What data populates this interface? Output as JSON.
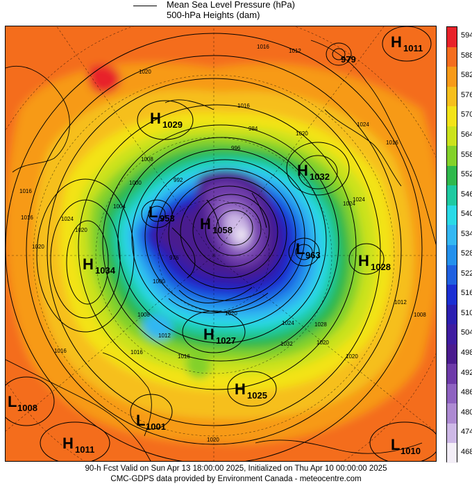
{
  "legend": {
    "line1": "Mean Sea Level Pressure (hPa)",
    "line2": "500-hPa Heights (dam)"
  },
  "colorbar": {
    "labels": [
      "594",
      "588",
      "582",
      "576",
      "570",
      "564",
      "558",
      "552",
      "546",
      "540",
      "534",
      "528",
      "522",
      "516",
      "510",
      "504",
      "498",
      "492",
      "486",
      "480",
      "474",
      "468"
    ],
    "colors": [
      "#e8222a",
      "#f46d1e",
      "#f79a18",
      "#f6bf1c",
      "#f3e318",
      "#cbe21c",
      "#83d12a",
      "#2fb84c",
      "#1ec9a0",
      "#29d9e6",
      "#33b7f2",
      "#2390ec",
      "#1f60e0",
      "#1b2fd2",
      "#2b1fb0",
      "#3e1ca0",
      "#4a1b8e",
      "#6d3aa8",
      "#8e62c0",
      "#ad8ad2",
      "#cdb8e6",
      "#f3eef7"
    ]
  },
  "centers": [
    {
      "type": "H",
      "value": "1011"
    },
    {
      "type": "",
      "value": "979"
    },
    {
      "type": "H",
      "value": "1029"
    },
    {
      "type": "H",
      "value": "1032"
    },
    {
      "type": "L",
      "value": "953"
    },
    {
      "type": "H",
      "value": "1058"
    },
    {
      "type": "H",
      "value": "1034"
    },
    {
      "type": "L",
      "value": "963"
    },
    {
      "type": "H",
      "value": "1028"
    },
    {
      "type": "H",
      "value": "1027"
    },
    {
      "type": "H",
      "value": "1025"
    },
    {
      "type": "L",
      "value": "1008"
    },
    {
      "type": "L",
      "value": "1001"
    },
    {
      "type": "H",
      "value": "1011"
    },
    {
      "type": "L",
      "value": "1010"
    }
  ],
  "isobar_labels": [
    "1016",
    "1020",
    "1012",
    "1016",
    "1020",
    "1024",
    "1016",
    "1020",
    "1024",
    "1020",
    "1008",
    "1004",
    "1000",
    "992",
    "996",
    "984",
    "976",
    "1000",
    "1008",
    "1012",
    "1016",
    "1024",
    "1028",
    "1032",
    "1020",
    "1024",
    "1016",
    "1020",
    "1020",
    "1016",
    "1016",
    "1016",
    "1012",
    "1008",
    "1024",
    "1020"
  ],
  "footer": {
    "line1": "90-h Fcst Valid on Sun Apr 13 18:00:00 2025, Initialized on Thu Apr 10 00:00:00 2025",
    "line2": "CMC-GDPS data provided by Environment Canada - meteocentre.com"
  }
}
